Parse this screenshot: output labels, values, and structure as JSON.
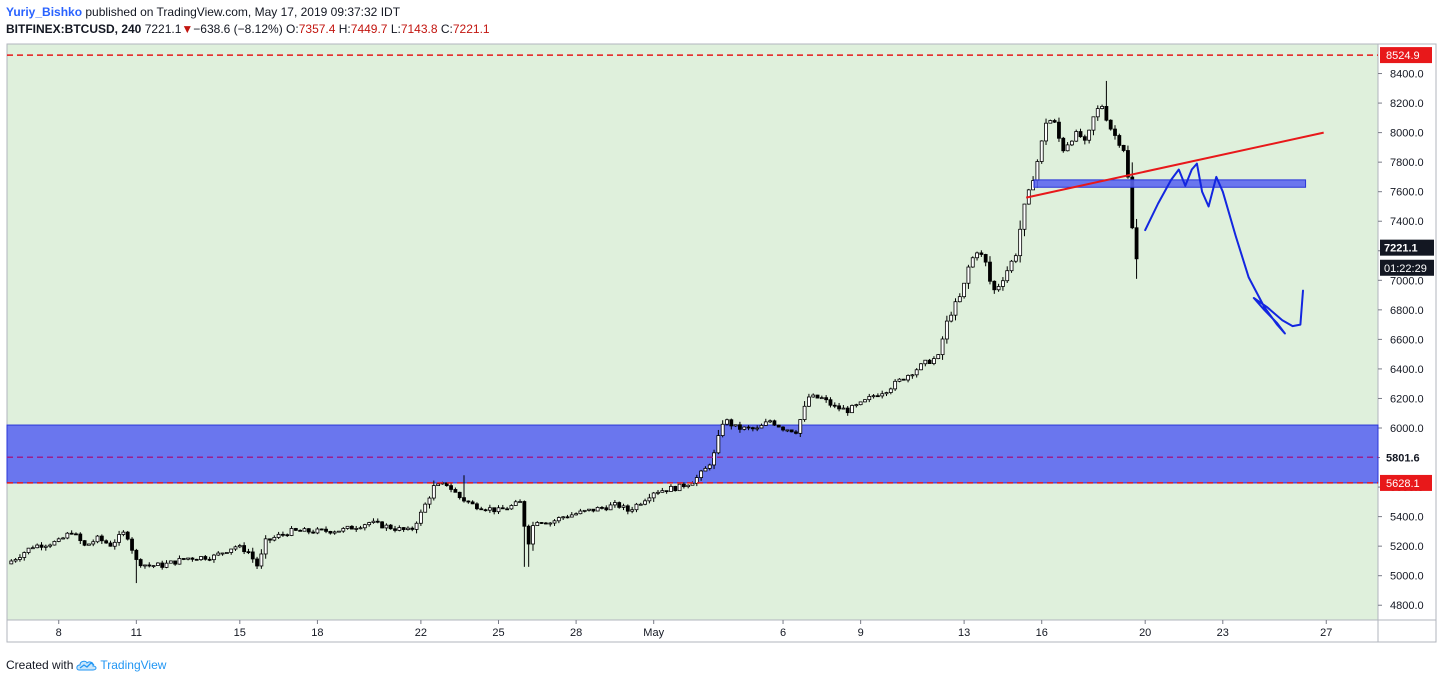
{
  "header": {
    "author": "Yuriy_Bishko",
    "published_text": "published on TradingView.com, May 17, 2019 09:37:32 IDT",
    "symbol": "BITFINEX:BTCUSD, 240",
    "last_price": "7221.1",
    "change_arrow": "▼",
    "change": "−638.6 (−8.12%)",
    "o_label": "O:",
    "o_value": "7357.4",
    "h_label": "H:",
    "h_value": "7449.7",
    "l_label": "L:",
    "l_value": "7143.8",
    "c_label": "C:",
    "c_value": "7221.1"
  },
  "footer": {
    "created_with": "Created with",
    "brand": "TradingView"
  },
  "colors": {
    "background": "#dff0dc",
    "candle": "#000000",
    "zone_fill": "#5a64f0",
    "zone_border": "#2a36d8",
    "level_line": "#e8181a",
    "trendline": "#e8181a",
    "projection": "#1326e0",
    "mid_line": "#9b1f8f"
  },
  "chart_data": {
    "type": "candlestick",
    "symbol": "BITFINEX:BTCUSD",
    "timeframe": "240",
    "ylim": [
      4700,
      8600
    ],
    "y_ticks": [
      4800,
      5000,
      5200,
      5400,
      5600,
      5800,
      6000,
      6200,
      6400,
      6600,
      6800,
      7000,
      7200,
      7400,
      7600,
      7800,
      8000,
      8200,
      8400
    ],
    "y_tick_labels": [
      "4800.0",
      "5000.0",
      "5200.0",
      "5400.0",
      "5600.0",
      "5800.0",
      "6000.0",
      "6200.0",
      "6400.0",
      "6600.0",
      "6800.0",
      "7000.0",
      "7200.0",
      "7400.0",
      "7600.0",
      "7800.0",
      "8000.0",
      "8200.0",
      "8400.0"
    ],
    "x_ticks": [
      {
        "label": "8",
        "day": 8
      },
      {
        "label": "11",
        "day": 11
      },
      {
        "label": "15",
        "day": 15
      },
      {
        "label": "18",
        "day": 18
      },
      {
        "label": "22",
        "day": 22
      },
      {
        "label": "25",
        "day": 25
      },
      {
        "label": "28",
        "day": 28
      },
      {
        "label": "May",
        "day": 31
      },
      {
        "label": "6",
        "day": 36
      },
      {
        "label": "9",
        "day": 39
      },
      {
        "label": "13",
        "day": 43
      },
      {
        "label": "16",
        "day": 46
      },
      {
        "label": "20",
        "day": 50
      },
      {
        "label": "23",
        "day": 53
      },
      {
        "label": "27",
        "day": 57
      }
    ],
    "x_range_days": [
      6.0,
      59.0
    ],
    "price_path": [
      [
        6.0,
        5080
      ],
      [
        7.0,
        5200
      ],
      [
        8.0,
        5230
      ],
      [
        8.5,
        5300
      ],
      [
        9.0,
        5200
      ],
      [
        9.5,
        5250
      ],
      [
        10.0,
        5210
      ],
      [
        10.6,
        5300
      ],
      [
        11.0,
        5100
      ],
      [
        11.4,
        5070
      ],
      [
        12.0,
        5070
      ],
      [
        13.0,
        5120
      ],
      [
        14.0,
        5130
      ],
      [
        14.8,
        5200
      ],
      [
        15.3,
        5170
      ],
      [
        15.7,
        5060
      ],
      [
        16.0,
        5230
      ],
      [
        16.5,
        5270
      ],
      [
        17.0,
        5300
      ],
      [
        18.0,
        5300
      ],
      [
        19.0,
        5310
      ],
      [
        20.0,
        5360
      ],
      [
        21.0,
        5320
      ],
      [
        21.6,
        5300
      ],
      [
        22.0,
        5420
      ],
      [
        22.5,
        5600
      ],
      [
        23.0,
        5620
      ],
      [
        23.5,
        5530
      ],
      [
        24.0,
        5480
      ],
      [
        24.5,
        5460
      ],
      [
        25.0,
        5440
      ],
      [
        25.5,
        5470
      ],
      [
        25.9,
        5500
      ],
      [
        26.1,
        5190
      ],
      [
        26.4,
        5380
      ],
      [
        27.0,
        5360
      ],
      [
        27.5,
        5400
      ],
      [
        28.0,
        5420
      ],
      [
        29.0,
        5460
      ],
      [
        29.6,
        5480
      ],
      [
        30.0,
        5440
      ],
      [
        30.5,
        5500
      ],
      [
        31.0,
        5570
      ],
      [
        32.0,
        5600
      ],
      [
        32.6,
        5650
      ],
      [
        33.0,
        5720
      ],
      [
        33.3,
        5800
      ],
      [
        33.7,
        6060
      ],
      [
        34.2,
        6000
      ],
      [
        35.0,
        5990
      ],
      [
        35.5,
        6050
      ],
      [
        36.0,
        6000
      ],
      [
        36.5,
        5980
      ],
      [
        37.0,
        6210
      ],
      [
        37.5,
        6200
      ],
      [
        38.0,
        6140
      ],
      [
        38.5,
        6120
      ],
      [
        39.0,
        6160
      ],
      [
        39.5,
        6220
      ],
      [
        40.0,
        6260
      ],
      [
        40.5,
        6320
      ],
      [
        41.0,
        6380
      ],
      [
        41.5,
        6440
      ],
      [
        42.0,
        6480
      ],
      [
        42.3,
        6700
      ],
      [
        42.6,
        6820
      ],
      [
        42.9,
        6900
      ],
      [
        43.2,
        7110
      ],
      [
        43.5,
        7200
      ],
      [
        43.8,
        7140
      ],
      [
        44.1,
        6920
      ],
      [
        44.4,
        6980
      ],
      [
        44.7,
        7080
      ],
      [
        45.0,
        7180
      ],
      [
        45.3,
        7480
      ],
      [
        45.6,
        7650
      ],
      [
        45.9,
        7850
      ],
      [
        46.2,
        8100
      ],
      [
        46.5,
        8060
      ],
      [
        46.8,
        7880
      ],
      [
        47.1,
        7950
      ],
      [
        47.4,
        8000
      ],
      [
        47.7,
        7920
      ],
      [
        48.0,
        8100
      ],
      [
        48.3,
        8200
      ],
      [
        48.6,
        8050
      ],
      [
        48.9,
        7960
      ],
      [
        49.2,
        7880
      ],
      [
        49.4,
        7600
      ],
      [
        49.6,
        7100
      ],
      [
        49.8,
        7221.1
      ]
    ],
    "wick_extremes": [
      {
        "day": 11.0,
        "low": 4950
      },
      {
        "day": 23.7,
        "high": 5680
      },
      {
        "day": 26.1,
        "low": 5060
      },
      {
        "day": 48.45,
        "high": 8350
      },
      {
        "day": 49.7,
        "low": 7010
      }
    ],
    "annotations": {
      "lines": [
        {
          "price": 8524.9,
          "label": "8524.9",
          "style": "dashed",
          "color": "red"
        },
        {
          "price": 5628.1,
          "label": "5628.1",
          "style": "dashed",
          "color": "red"
        },
        {
          "price": 5801.6,
          "label": "5801.6",
          "style": "dashed",
          "color": "purple"
        }
      ],
      "zones": [
        {
          "from_day": 6.0,
          "to_day": 59.0,
          "price_low": 5628.1,
          "price_high": 6020
        },
        {
          "from_day": 45.7,
          "to_day": 56.2,
          "price_low": 7630,
          "price_high": 7680
        }
      ],
      "trendline": {
        "from": [
          45.4,
          7560
        ],
        "to": [
          56.9,
          8000
        ]
      },
      "projection_path": [
        [
          50.0,
          7340
        ],
        [
          50.5,
          7520
        ],
        [
          51.0,
          7680
        ],
        [
          51.3,
          7750
        ],
        [
          51.55,
          7640
        ],
        [
          51.8,
          7750
        ],
        [
          52.0,
          7790
        ],
        [
          52.2,
          7600
        ],
        [
          52.45,
          7500
        ],
        [
          52.75,
          7700
        ],
        [
          53.0,
          7600
        ],
        [
          53.5,
          7300
        ],
        [
          54.0,
          7020
        ],
        [
          54.6,
          6820
        ],
        [
          55.1,
          6700
        ],
        [
          55.4,
          6640
        ],
        [
          55.1,
          6710
        ],
        [
          54.6,
          6800
        ],
        [
          54.2,
          6880
        ],
        [
          54.7,
          6820
        ],
        [
          55.3,
          6730
        ],
        [
          55.7,
          6690
        ],
        [
          56.0,
          6700
        ],
        [
          56.1,
          6930
        ]
      ],
      "price_labels": [
        {
          "text": "7221.1",
          "price": 7221.1
        },
        {
          "text": "01:22:29",
          "price": 7085
        }
      ]
    }
  }
}
